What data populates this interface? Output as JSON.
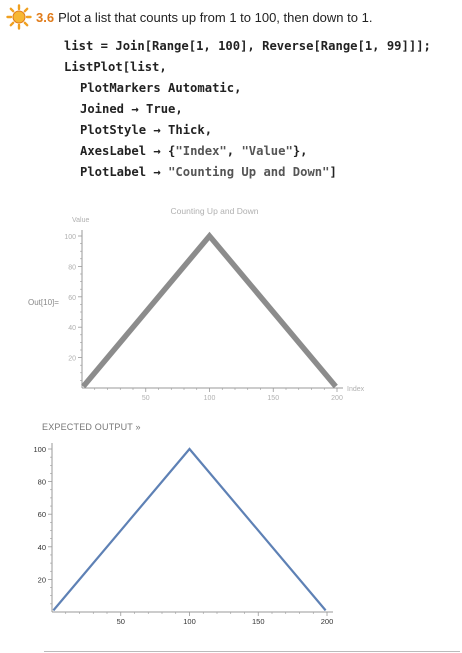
{
  "exercise": {
    "number": "3.6",
    "prompt": "Plot a list that counts up from 1 to 100, then down to 1."
  },
  "code": {
    "line1": "list = Join[Range[1, 100], Reverse[Range[1, 99]]];",
    "line2": "ListPlot[list,",
    "line3": "PlotMarkers Automatic,",
    "line4": "Joined → True,",
    "line5": "PlotStyle → Thick,",
    "line6_prefix": "AxesLabel → {",
    "line6_str1": "\"Index\"",
    "line6_sep": ", ",
    "line6_str2": "\"Value\"",
    "line6_suffix": "},",
    "line7_prefix": "PlotLabel → ",
    "line7_str": "\"Counting Up and Down\"",
    "line7_suffix": "]"
  },
  "output_label": "Out[10]=",
  "expected_label": "EXPECTED OUTPUT »",
  "colors": {
    "accent": "#e07b1a",
    "output_line": "#8c8c8c",
    "expected_line": "#5e81b5",
    "axis": "#999999",
    "tick_text": "#999999"
  },
  "chart_data": [
    {
      "type": "line",
      "title": "Counting Up and Down",
      "xlabel": "Index",
      "ylabel": "Value",
      "x": [
        1,
        100,
        199
      ],
      "y": [
        1,
        100,
        1
      ],
      "xlim": [
        0,
        200
      ],
      "ylim": [
        0,
        100
      ],
      "xticks": [
        50,
        100,
        150,
        200
      ],
      "yticks": [
        20,
        40,
        60,
        80,
        100
      ],
      "grid": false
    },
    {
      "type": "line",
      "title": "",
      "xlabel": "",
      "ylabel": "",
      "x": [
        1,
        100,
        199
      ],
      "y": [
        1,
        100,
        1
      ],
      "xlim": [
        0,
        200
      ],
      "ylim": [
        0,
        100
      ],
      "xticks": [
        50,
        100,
        150,
        200
      ],
      "yticks": [
        20,
        40,
        60,
        80,
        100
      ],
      "grid": false
    }
  ]
}
